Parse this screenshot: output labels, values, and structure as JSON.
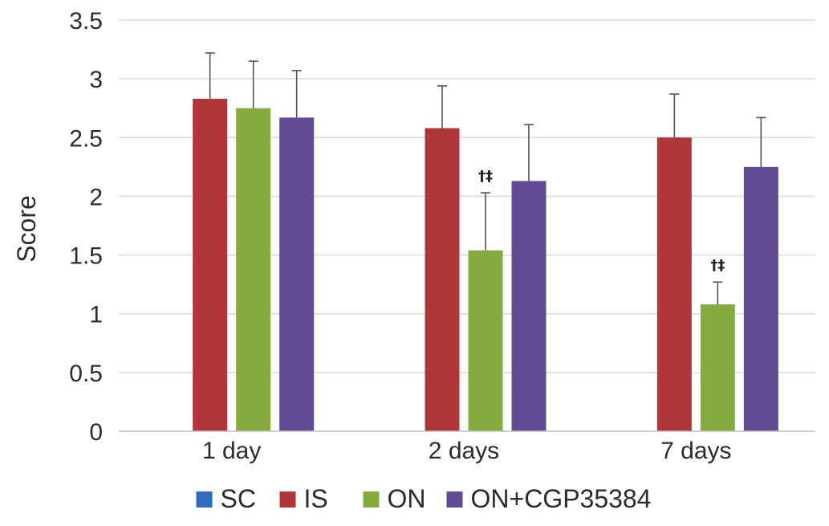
{
  "chart_data": {
    "type": "bar",
    "ylabel": "Score",
    "xlabel": "",
    "ylim": [
      0,
      3.5
    ],
    "yticks": [
      "0",
      "0.5",
      "1",
      "1.5",
      "2",
      "2.5",
      "3",
      "3.5"
    ],
    "categories": [
      "1 day",
      "2 days",
      "7 days"
    ],
    "grid": true,
    "legend_position": "bottom",
    "series": [
      {
        "name": "SC",
        "color": "#2e6dbd",
        "values": [
          0,
          0,
          0
        ],
        "errors": [
          0,
          0,
          0
        ]
      },
      {
        "name": "IS",
        "color": "#b0363a",
        "values": [
          2.83,
          2.58,
          2.5
        ],
        "errors": [
          0.39,
          0.36,
          0.37
        ]
      },
      {
        "name": "ON",
        "color": "#86ac40",
        "values": [
          2.75,
          1.54,
          1.08
        ],
        "errors": [
          0.4,
          0.49,
          0.19
        ]
      },
      {
        "name": "ON+CGP35384",
        "color": "#624b94",
        "values": [
          2.67,
          2.13,
          2.25
        ],
        "errors": [
          0.4,
          0.48,
          0.42
        ]
      }
    ],
    "annotations": [
      {
        "category": "2 days",
        "series": "ON",
        "text": "†‡"
      },
      {
        "category": "7 days",
        "series": "ON",
        "text": "†‡"
      }
    ]
  }
}
